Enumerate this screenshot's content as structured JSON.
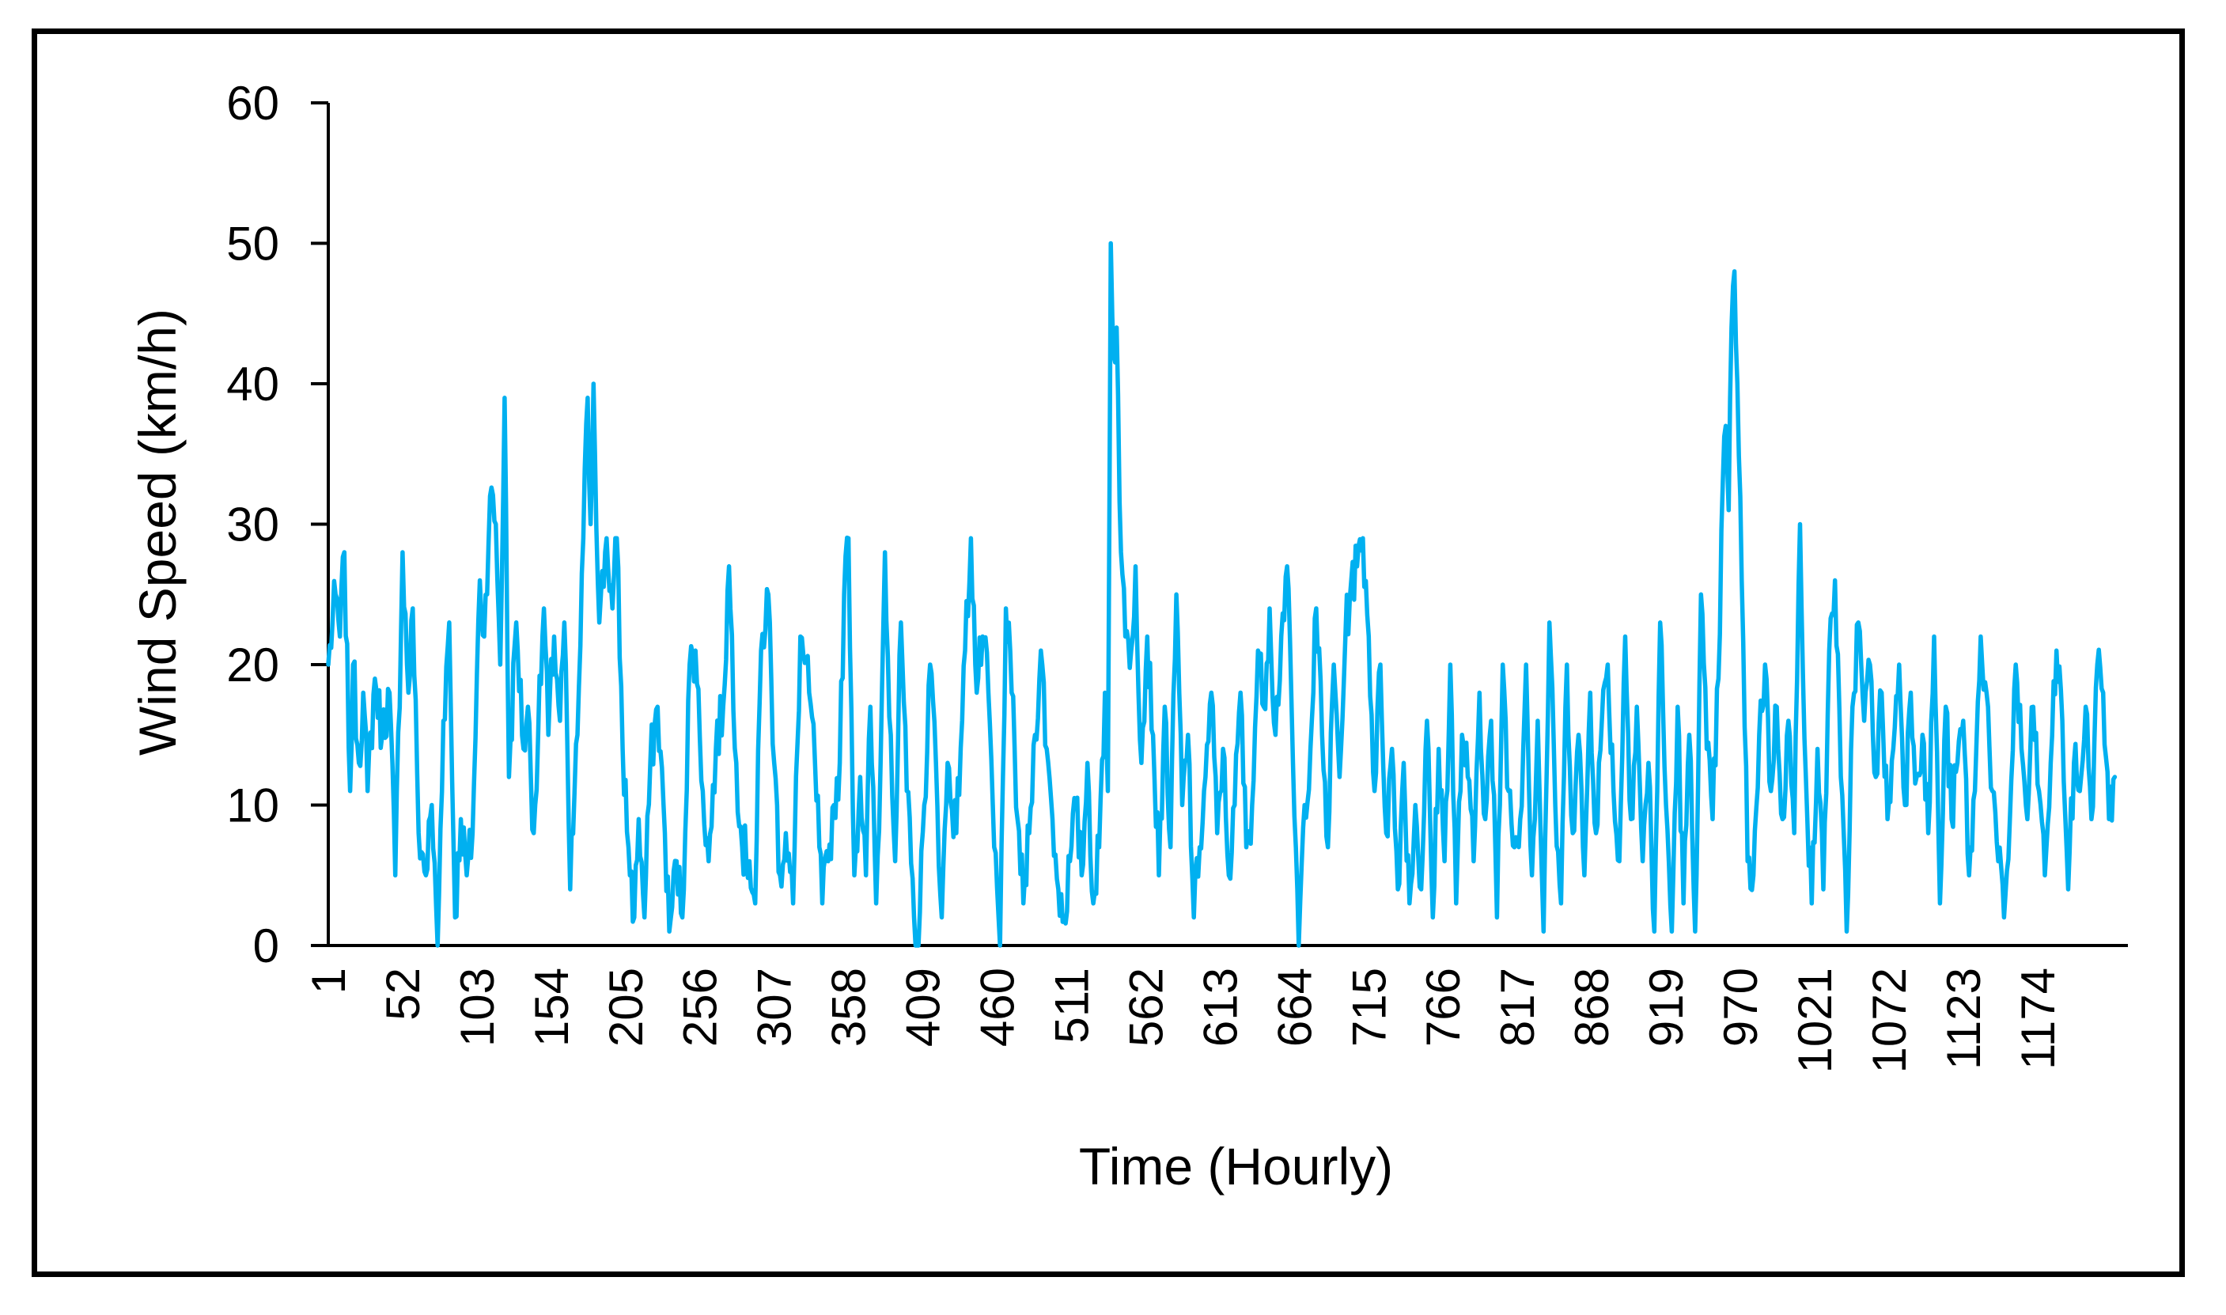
{
  "chart_data": {
    "type": "line",
    "title": "",
    "xlabel": "Time (Hourly)",
    "ylabel": "Wind Speed (km/h)",
    "ylim": [
      0,
      60
    ],
    "xlim": [
      1,
      1236
    ],
    "y_ticks": [
      "0",
      "10",
      "20",
      "30",
      "40",
      "50",
      "60"
    ],
    "x_ticks": [
      "1",
      "52",
      "103",
      "154",
      "205",
      "256",
      "307",
      "358",
      "409",
      "460",
      "511",
      "562",
      "613",
      "664",
      "715",
      "766",
      "817",
      "868",
      "919",
      "970",
      "1021",
      "1072",
      "1123",
      "1174"
    ],
    "x_tick_values": [
      1,
      52,
      103,
      154,
      205,
      256,
      307,
      358,
      409,
      460,
      511,
      562,
      613,
      664,
      715,
      766,
      817,
      868,
      919,
      970,
      1021,
      1072,
      1123,
      1174
    ],
    "grid": false,
    "legend": "none",
    "series_color": "#00B0F0",
    "anchors": [
      [
        1,
        20
      ],
      [
        6,
        25
      ],
      [
        9,
        22
      ],
      [
        12,
        28
      ],
      [
        16,
        11
      ],
      [
        18,
        20
      ],
      [
        22,
        13
      ],
      [
        25,
        18
      ],
      [
        28,
        11
      ],
      [
        33,
        19
      ],
      [
        38,
        15
      ],
      [
        43,
        18
      ],
      [
        47,
        5
      ],
      [
        52,
        28
      ],
      [
        56,
        18
      ],
      [
        59,
        24
      ],
      [
        63,
        8
      ],
      [
        68,
        5
      ],
      [
        72,
        10
      ],
      [
        76,
        0
      ],
      [
        80,
        16
      ],
      [
        84,
        23
      ],
      [
        88,
        2
      ],
      [
        92,
        9
      ],
      [
        96,
        5
      ],
      [
        100,
        8
      ],
      [
        105,
        26
      ],
      [
        108,
        22
      ],
      [
        112,
        32
      ],
      [
        116,
        30
      ],
      [
        119,
        20
      ],
      [
        122,
        39
      ],
      [
        125,
        12
      ],
      [
        130,
        23
      ],
      [
        135,
        14
      ],
      [
        138,
        17
      ],
      [
        142,
        8
      ],
      [
        145,
        15
      ],
      [
        149,
        24
      ],
      [
        152,
        15
      ],
      [
        156,
        22
      ],
      [
        160,
        16
      ],
      [
        163,
        23
      ],
      [
        167,
        4
      ],
      [
        172,
        15
      ],
      [
        176,
        29
      ],
      [
        179,
        39
      ],
      [
        181,
        30
      ],
      [
        183,
        40
      ],
      [
        187,
        23
      ],
      [
        192,
        29
      ],
      [
        196,
        24
      ],
      [
        199,
        29
      ],
      [
        203,
        14
      ],
      [
        207,
        7
      ],
      [
        211,
        2
      ],
      [
        214,
        9
      ],
      [
        218,
        2
      ],
      [
        222,
        13
      ],
      [
        227,
        17
      ],
      [
        232,
        8
      ],
      [
        235,
        1
      ],
      [
        240,
        6
      ],
      [
        244,
        2
      ],
      [
        249,
        20
      ],
      [
        253,
        21
      ],
      [
        258,
        11
      ],
      [
        262,
        6
      ],
      [
        267,
        14
      ],
      [
        272,
        17
      ],
      [
        276,
        27
      ],
      [
        281,
        13
      ],
      [
        285,
        7
      ],
      [
        290,
        6
      ],
      [
        294,
        3
      ],
      [
        298,
        21
      ],
      [
        303,
        25
      ],
      [
        307,
        13
      ],
      [
        311,
        5
      ],
      [
        315,
        8
      ],
      [
        320,
        3
      ],
      [
        325,
        22
      ],
      [
        331,
        18
      ],
      [
        335,
        13
      ],
      [
        340,
        3
      ],
      [
        344,
        6
      ],
      [
        348,
        10
      ],
      [
        352,
        13
      ],
      [
        355,
        25
      ],
      [
        358,
        29
      ],
      [
        362,
        5
      ],
      [
        366,
        12
      ],
      [
        370,
        5
      ],
      [
        373,
        17
      ],
      [
        377,
        3
      ],
      [
        380,
        13
      ],
      [
        383,
        28
      ],
      [
        387,
        15
      ],
      [
        390,
        6
      ],
      [
        394,
        23
      ],
      [
        398,
        11
      ],
      [
        403,
        2
      ],
      [
        406,
        0
      ],
      [
        410,
        10
      ],
      [
        414,
        20
      ],
      [
        418,
        13
      ],
      [
        422,
        2
      ],
      [
        426,
        13
      ],
      [
        432,
        8
      ],
      [
        438,
        21
      ],
      [
        442,
        29
      ],
      [
        446,
        18
      ],
      [
        450,
        22
      ],
      [
        454,
        18
      ],
      [
        458,
        7
      ],
      [
        462,
        0
      ],
      [
        466,
        24
      ],
      [
        470,
        18
      ],
      [
        474,
        9
      ],
      [
        478,
        3
      ],
      [
        482,
        8
      ],
      [
        486,
        15
      ],
      [
        490,
        21
      ],
      [
        494,
        14
      ],
      [
        498,
        9
      ],
      [
        502,
        4
      ],
      [
        506,
        2
      ],
      [
        510,
        6
      ],
      [
        514,
        10
      ],
      [
        518,
        5
      ],
      [
        522,
        13
      ],
      [
        526,
        3
      ],
      [
        530,
        7
      ],
      [
        534,
        18
      ],
      [
        536,
        11
      ],
      [
        538,
        50
      ],
      [
        540,
        42
      ],
      [
        542,
        44
      ],
      [
        545,
        28
      ],
      [
        548,
        22
      ],
      [
        552,
        21
      ],
      [
        555,
        27
      ],
      [
        559,
        13
      ],
      [
        563,
        22
      ],
      [
        567,
        15
      ],
      [
        571,
        5
      ],
      [
        575,
        17
      ],
      [
        579,
        7
      ],
      [
        583,
        25
      ],
      [
        587,
        10
      ],
      [
        591,
        15
      ],
      [
        595,
        2
      ],
      [
        599,
        7
      ],
      [
        603,
        12
      ],
      [
        607,
        18
      ],
      [
        611,
        8
      ],
      [
        615,
        14
      ],
      [
        619,
        5
      ],
      [
        623,
        10
      ],
      [
        627,
        18
      ],
      [
        631,
        7
      ],
      [
        635,
        10
      ],
      [
        639,
        21
      ],
      [
        643,
        17
      ],
      [
        647,
        24
      ],
      [
        651,
        15
      ],
      [
        655,
        22
      ],
      [
        659,
        27
      ],
      [
        663,
        13
      ],
      [
        667,
        0
      ],
      [
        671,
        10
      ],
      [
        675,
        14
      ],
      [
        679,
        24
      ],
      [
        683,
        15
      ],
      [
        687,
        7
      ],
      [
        691,
        20
      ],
      [
        695,
        12
      ],
      [
        699,
        22
      ],
      [
        703,
        26
      ],
      [
        707,
        27
      ],
      [
        711,
        29
      ],
      [
        715,
        22
      ],
      [
        719,
        11
      ],
      [
        723,
        20
      ],
      [
        727,
        8
      ],
      [
        731,
        14
      ],
      [
        735,
        4
      ],
      [
        739,
        13
      ],
      [
        743,
        3
      ],
      [
        747,
        10
      ],
      [
        751,
        4
      ],
      [
        755,
        16
      ],
      [
        759,
        2
      ],
      [
        763,
        14
      ],
      [
        767,
        6
      ],
      [
        771,
        20
      ],
      [
        775,
        3
      ],
      [
        779,
        15
      ],
      [
        783,
        12
      ],
      [
        787,
        6
      ],
      [
        791,
        18
      ],
      [
        795,
        9
      ],
      [
        799,
        16
      ],
      [
        803,
        2
      ],
      [
        807,
        20
      ],
      [
        811,
        11
      ],
      [
        815,
        7
      ],
      [
        819,
        9
      ],
      [
        823,
        20
      ],
      [
        827,
        5
      ],
      [
        831,
        16
      ],
      [
        835,
        1
      ],
      [
        839,
        23
      ],
      [
        843,
        10
      ],
      [
        847,
        3
      ],
      [
        851,
        20
      ],
      [
        855,
        8
      ],
      [
        859,
        15
      ],
      [
        863,
        5
      ],
      [
        867,
        18
      ],
      [
        871,
        8
      ],
      [
        875,
        16
      ],
      [
        879,
        20
      ],
      [
        883,
        11
      ],
      [
        887,
        6
      ],
      [
        891,
        22
      ],
      [
        895,
        9
      ],
      [
        899,
        17
      ],
      [
        903,
        6
      ],
      [
        907,
        13
      ],
      [
        911,
        1
      ],
      [
        915,
        23
      ],
      [
        919,
        10
      ],
      [
        923,
        1
      ],
      [
        927,
        17
      ],
      [
        931,
        3
      ],
      [
        935,
        15
      ],
      [
        939,
        1
      ],
      [
        943,
        25
      ],
      [
        947,
        14
      ],
      [
        951,
        9
      ],
      [
        955,
        19
      ],
      [
        958,
        33
      ],
      [
        960,
        37
      ],
      [
        962,
        31
      ],
      [
        964,
        44
      ],
      [
        966,
        48
      ],
      [
        968,
        40
      ],
      [
        971,
        26
      ],
      [
        975,
        6
      ],
      [
        979,
        5
      ],
      [
        983,
        15
      ],
      [
        987,
        20
      ],
      [
        991,
        11
      ],
      [
        995,
        17
      ],
      [
        999,
        9
      ],
      [
        1003,
        16
      ],
      [
        1007,
        8
      ],
      [
        1011,
        30
      ],
      [
        1015,
        12
      ],
      [
        1019,
        3
      ],
      [
        1023,
        14
      ],
      [
        1027,
        4
      ],
      [
        1031,
        21
      ],
      [
        1035,
        26
      ],
      [
        1039,
        12
      ],
      [
        1043,
        1
      ],
      [
        1047,
        17
      ],
      [
        1051,
        23
      ],
      [
        1055,
        16
      ],
      [
        1059,
        20
      ],
      [
        1063,
        12
      ],
      [
        1067,
        18
      ],
      [
        1071,
        9
      ],
      [
        1075,
        14
      ],
      [
        1079,
        20
      ],
      [
        1083,
        10
      ],
      [
        1087,
        18
      ],
      [
        1091,
        12
      ],
      [
        1095,
        15
      ],
      [
        1099,
        8
      ],
      [
        1103,
        22
      ],
      [
        1107,
        3
      ],
      [
        1111,
        17
      ],
      [
        1115,
        9
      ],
      [
        1119,
        13
      ],
      [
        1123,
        16
      ],
      [
        1127,
        5
      ],
      [
        1131,
        11
      ],
      [
        1135,
        22
      ],
      [
        1139,
        18
      ],
      [
        1143,
        11
      ],
      [
        1147,
        6
      ],
      [
        1151,
        2
      ],
      [
        1155,
        9
      ],
      [
        1159,
        20
      ],
      [
        1163,
        14
      ],
      [
        1167,
        9
      ],
      [
        1171,
        17
      ],
      [
        1175,
        11
      ],
      [
        1179,
        5
      ],
      [
        1183,
        13
      ],
      [
        1187,
        21
      ],
      [
        1191,
        16
      ],
      [
        1195,
        4
      ],
      [
        1199,
        13
      ],
      [
        1203,
        11
      ],
      [
        1207,
        17
      ],
      [
        1211,
        9
      ],
      [
        1215,
        20
      ],
      [
        1219,
        18
      ],
      [
        1223,
        9
      ],
      [
        1227,
        12
      ]
    ]
  }
}
